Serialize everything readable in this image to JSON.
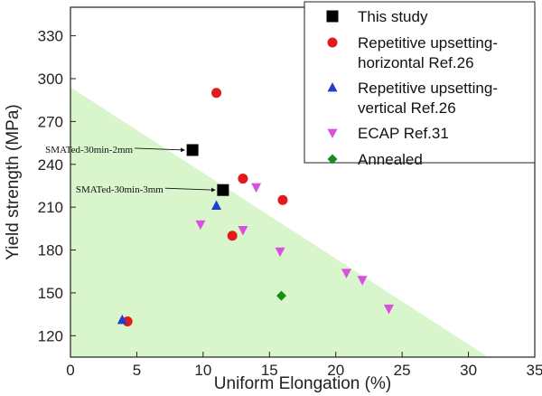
{
  "chart_data": {
    "type": "scatter",
    "xlabel": "Uniform Elongation (%)",
    "ylabel": "Yield strength (MPa)",
    "xlim": [
      0,
      35
    ],
    "ylim": [
      105,
      350
    ],
    "x_ticks": [
      "0",
      "5",
      "10",
      "15",
      "20",
      "25",
      "30",
      "35"
    ],
    "y_ticks": [
      "120",
      "150",
      "180",
      "210",
      "240",
      "270",
      "300",
      "330"
    ],
    "shaded_region": {
      "color": "#d9f5cc",
      "boundary_points": [
        [
          0,
          294
        ],
        [
          31.5,
          105
        ]
      ]
    },
    "legend_position": "top-right",
    "series": [
      {
        "name": "This study",
        "marker": "square",
        "color": "#000000",
        "points": [
          [
            9.2,
            250
          ],
          [
            11.5,
            222
          ]
        ]
      },
      {
        "name": "Repetitive upsetting-\nhorizontal  Ref.26",
        "marker": "circle",
        "color": "#e31a1c",
        "points": [
          [
            11,
            290
          ],
          [
            13,
            230
          ],
          [
            16,
            215
          ],
          [
            12.2,
            190
          ],
          [
            4.3,
            130
          ]
        ]
      },
      {
        "name": "Repetitive upsetting-\nvertical Ref.26",
        "marker": "triangle-up",
        "color": "#1f3fd0",
        "points": [
          [
            11,
            211
          ],
          [
            3.9,
            131
          ]
        ]
      },
      {
        "name": "ECAP Ref.31",
        "marker": "triangle-down",
        "color": "#d94fe0",
        "points": [
          [
            14,
            224
          ],
          [
            9.8,
            198
          ],
          [
            13,
            194
          ],
          [
            15.8,
            179
          ],
          [
            20.8,
            164
          ],
          [
            22,
            159
          ],
          [
            24,
            139
          ]
        ]
      },
      {
        "name": "Annealed",
        "marker": "diamond",
        "color": "#1a8c1a",
        "points": [
          [
            15.9,
            148
          ]
        ]
      }
    ],
    "annotations": [
      {
        "text": "SMATed-30min-2mm",
        "x": 9.2,
        "y": 250
      },
      {
        "text": "SMATed-30min-3mm",
        "x": 11.5,
        "y": 222
      }
    ]
  }
}
